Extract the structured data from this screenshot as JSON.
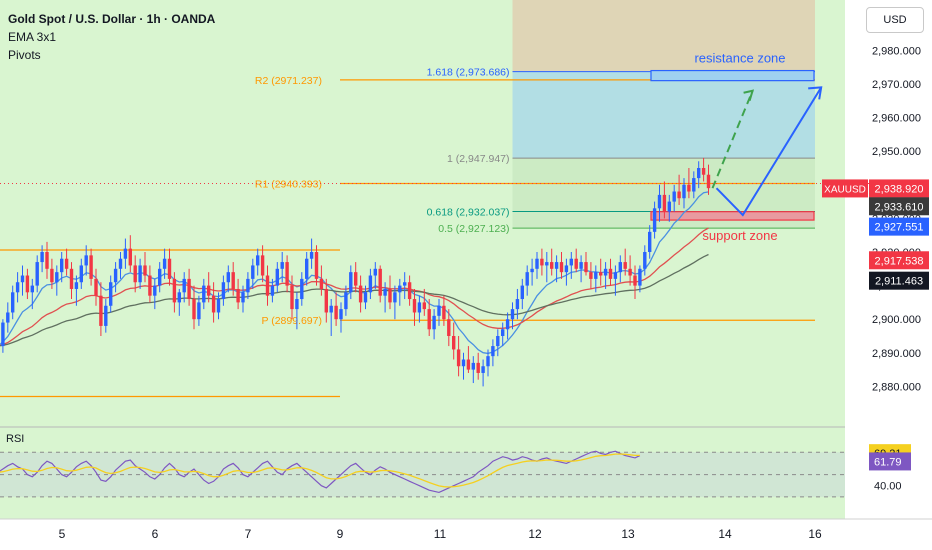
{
  "header": {
    "title": "Gold Spot / U.S. Dollar · 1h · OANDA",
    "indicator": "EMA 3x1",
    "pivots": "Pivots",
    "currency_button": "USD"
  },
  "colors": {
    "background": "#d9f5d0",
    "up_candle": "#2962ff",
    "down_candle": "#f23645",
    "pivot": "#ff9800",
    "fib_upper_zone": "#a7d8e8",
    "fib_top_zone": "#e0c9ad",
    "fib_mid_zone": "#c8e8c0",
    "resistance": "#2962ff",
    "support": "#f23645",
    "ema_fast": "#4a90e2",
    "ema_mid": "#e05050",
    "ema_slow": "#607060",
    "rsi_line": "#7e57c2",
    "rsi_ma": "#f5d020"
  },
  "chart_data": {
    "type": "candlestick",
    "symbol": "XAUUSD",
    "y_range": [
      2870,
      2995
    ],
    "y_ticks": [
      "2,980.000",
      "2,970.000",
      "2,960.000",
      "2,950.000",
      "2,940.000",
      "2,930.000",
      "2,920.000",
      "2,910.000",
      "2,900.000",
      "2,890.000",
      "2,880.000"
    ],
    "x_ticks": [
      "5",
      "6",
      "7",
      "9",
      "11",
      "12",
      "13",
      "14",
      "16"
    ],
    "x_tick_index": [
      10,
      34,
      58,
      82,
      106,
      130,
      154,
      178,
      202
    ],
    "candles": [
      [
        2890,
        2893,
        2886,
        2892
      ],
      [
        2892,
        2900,
        2890,
        2899
      ],
      [
        2899,
        2905,
        2896,
        2902
      ],
      [
        2902,
        2910,
        2900,
        2908
      ],
      [
        2908,
        2914,
        2905,
        2911
      ],
      [
        2911,
        2916,
        2907,
        2913
      ],
      [
        2913,
        2915,
        2906,
        2908
      ],
      [
        2908,
        2912,
        2903,
        2910
      ],
      [
        2910,
        2919,
        2908,
        2917
      ],
      [
        2917,
        2922,
        2914,
        2920
      ],
      [
        2920,
        2923,
        2912,
        2915
      ],
      [
        2915,
        2918,
        2909,
        2911
      ],
      [
        2911,
        2916,
        2907,
        2914
      ],
      [
        2914,
        2920,
        2911,
        2918
      ],
      [
        2918,
        2921,
        2913,
        2915
      ],
      [
        2915,
        2917,
        2906,
        2909
      ],
      [
        2909,
        2913,
        2904,
        2911
      ],
      [
        2911,
        2918,
        2909,
        2916
      ],
      [
        2916,
        2922,
        2913,
        2919
      ],
      [
        2919,
        2921,
        2910,
        2912
      ],
      [
        2912,
        2915,
        2904,
        2907
      ],
      [
        2907,
        2911,
        2895,
        2898
      ],
      [
        2898,
        2906,
        2896,
        2904
      ],
      [
        2904,
        2913,
        2902,
        2911
      ],
      [
        2911,
        2917,
        2908,
        2915
      ],
      [
        2915,
        2920,
        2912,
        2918
      ],
      [
        2918,
        2924,
        2915,
        2921
      ],
      [
        2921,
        2925,
        2914,
        2916
      ],
      [
        2916,
        2919,
        2908,
        2911
      ],
      [
        2911,
        2918,
        2909,
        2916
      ],
      [
        2916,
        2920,
        2911,
        2913
      ],
      [
        2913,
        2916,
        2905,
        2907
      ],
      [
        2907,
        2912,
        2903,
        2910
      ],
      [
        2910,
        2917,
        2908,
        2915
      ],
      [
        2915,
        2921,
        2912,
        2918
      ],
      [
        2918,
        2921,
        2910,
        2912
      ],
      [
        2912,
        2914,
        2902,
        2905
      ],
      [
        2905,
        2909,
        2901,
        2908
      ],
      [
        2908,
        2914,
        2905,
        2912
      ],
      [
        2912,
        2915,
        2904,
        2906
      ],
      [
        2906,
        2910,
        2897,
        2900
      ],
      [
        2900,
        2907,
        2898,
        2905
      ],
      [
        2905,
        2912,
        2903,
        2910
      ],
      [
        2910,
        2914,
        2905,
        2907
      ],
      [
        2907,
        2911,
        2899,
        2902
      ],
      [
        2902,
        2908,
        2900,
        2906
      ],
      [
        2906,
        2913,
        2904,
        2911
      ],
      [
        2911,
        2916,
        2908,
        2914
      ],
      [
        2914,
        2917,
        2907,
        2909
      ],
      [
        2909,
        2912,
        2903,
        2905
      ],
      [
        2905,
        2910,
        2902,
        2908
      ],
      [
        2908,
        2914,
        2906,
        2912
      ],
      [
        2912,
        2918,
        2909,
        2916
      ],
      [
        2916,
        2921,
        2913,
        2919
      ],
      [
        2919,
        2922,
        2911,
        2913
      ],
      [
        2913,
        2916,
        2904,
        2907
      ],
      [
        2907,
        2912,
        2905,
        2910
      ],
      [
        2910,
        2917,
        2908,
        2915
      ],
      [
        2915,
        2920,
        2911,
        2917
      ],
      [
        2917,
        2919,
        2908,
        2910
      ],
      [
        2910,
        2913,
        2900,
        2903
      ],
      [
        2903,
        2908,
        2897,
        2906
      ],
      [
        2906,
        2914,
        2904,
        2912
      ],
      [
        2912,
        2920,
        2910,
        2918
      ],
      [
        2918,
        2924,
        2915,
        2920
      ],
      [
        2920,
        2922,
        2910,
        2912
      ],
      [
        2912,
        2916,
        2907,
        2909
      ],
      [
        2909,
        2912,
        2899,
        2902
      ],
      [
        2902,
        2906,
        2895,
        2904
      ],
      [
        2904,
        2908,
        2898,
        2900
      ],
      [
        2900,
        2905,
        2896,
        2903
      ],
      [
        2903,
        2910,
        2901,
        2908
      ],
      [
        2908,
        2916,
        2906,
        2914
      ],
      [
        2914,
        2917,
        2908,
        2910
      ],
      [
        2910,
        2913,
        2902,
        2905
      ],
      [
        2905,
        2910,
        2903,
        2908
      ],
      [
        2908,
        2915,
        2906,
        2913
      ],
      [
        2913,
        2917,
        2909,
        2915
      ],
      [
        2915,
        2916,
        2905,
        2907
      ],
      [
        2907,
        2911,
        2902,
        2909
      ],
      [
        2909,
        2913,
        2903,
        2905
      ],
      [
        2905,
        2910,
        2900,
        2908
      ],
      [
        2908,
        2912,
        2904,
        2910
      ],
      [
        2910,
        2914,
        2906,
        2911
      ],
      [
        2911,
        2913,
        2904,
        2906
      ],
      [
        2906,
        2909,
        2898,
        2902
      ],
      [
        2902,
        2907,
        2899,
        2905
      ],
      [
        2905,
        2909,
        2901,
        2903
      ],
      [
        2903,
        2906,
        2895,
        2897
      ],
      [
        2897,
        2903,
        2894,
        2901
      ],
      [
        2901,
        2906,
        2898,
        2904
      ],
      [
        2904,
        2907,
        2898,
        2900
      ],
      [
        2900,
        2903,
        2892,
        2895
      ],
      [
        2895,
        2899,
        2888,
        2891
      ],
      [
        2891,
        2895,
        2883,
        2886
      ],
      [
        2886,
        2890,
        2882,
        2888
      ],
      [
        2888,
        2892,
        2884,
        2885
      ],
      [
        2885,
        2889,
        2881,
        2887
      ],
      [
        2887,
        2890,
        2882,
        2884
      ],
      [
        2884,
        2888,
        2880,
        2886
      ],
      [
        2886,
        2891,
        2883,
        2889
      ],
      [
        2889,
        2894,
        2886,
        2892
      ],
      [
        2892,
        2897,
        2889,
        2895
      ],
      [
        2895,
        2899,
        2892,
        2897
      ],
      [
        2897,
        2902,
        2894,
        2900
      ],
      [
        2900,
        2905,
        2897,
        2903
      ],
      [
        2903,
        2909,
        2900,
        2906
      ],
      [
        2906,
        2912,
        2903,
        2910
      ],
      [
        2910,
        2916,
        2907,
        2914
      ],
      [
        2914,
        2918,
        2910,
        2915
      ],
      [
        2915,
        2920,
        2912,
        2918
      ],
      [
        2918,
        2921,
        2913,
        2916
      ],
      [
        2916,
        2920,
        2911,
        2917
      ],
      [
        2917,
        2921,
        2913,
        2915
      ],
      [
        2915,
        2919,
        2911,
        2917
      ],
      [
        2917,
        2920,
        2912,
        2914
      ],
      [
        2914,
        2918,
        2910,
        2916
      ],
      [
        2916,
        2920,
        2912,
        2918
      ],
      [
        2918,
        2921,
        2914,
        2915
      ],
      [
        2915,
        2919,
        2911,
        2917
      ],
      [
        2917,
        2920,
        2913,
        2914
      ],
      [
        2914,
        2917,
        2909,
        2912
      ],
      [
        2912,
        2916,
        2908,
        2914
      ],
      [
        2914,
        2918,
        2910,
        2913
      ],
      [
        2913,
        2917,
        2909,
        2915
      ],
      [
        2915,
        2918,
        2910,
        2912
      ],
      [
        2912,
        2916,
        2907,
        2914
      ],
      [
        2914,
        2919,
        2911,
        2917
      ],
      [
        2917,
        2921,
        2913,
        2915
      ],
      [
        2915,
        2919,
        2910,
        2913
      ],
      [
        2913,
        2916,
        2906,
        2910
      ],
      [
        2910,
        2916,
        2908,
        2915
      ],
      [
        2915,
        2922,
        2913,
        2920
      ],
      [
        2920,
        2928,
        2918,
        2926
      ],
      [
        2926,
        2935,
        2924,
        2933
      ],
      [
        2933,
        2940,
        2929,
        2937
      ],
      [
        2937,
        2941,
        2930,
        2932
      ],
      [
        2932,
        2937,
        2929,
        2935
      ],
      [
        2935,
        2940,
        2932,
        2938
      ],
      [
        2938,
        2943,
        2934,
        2936
      ],
      [
        2936,
        2942,
        2933,
        2940
      ],
      [
        2940,
        2945,
        2936,
        2938
      ],
      [
        2938,
        2944,
        2936,
        2942
      ],
      [
        2942,
        2947,
        2939,
        2945
      ],
      [
        2945,
        2948,
        2941,
        2943
      ],
      [
        2943,
        2946,
        2937,
        2939
      ]
    ],
    "price_labels": [
      {
        "label": "XAUUSD",
        "value": "2,938.920",
        "color": "#f23645"
      },
      {
        "label": "",
        "value": "2,933.610",
        "color": "#3a3a3a"
      },
      {
        "label": "",
        "value": "2,927.551",
        "color": "#2962ff"
      },
      {
        "label": "",
        "value": "2,917.538",
        "color": "#f23645"
      },
      {
        "label": "",
        "value": "2,911.463",
        "color": "#131722"
      }
    ],
    "pivots": [
      {
        "label": "R2 (2971.237)",
        "value": 2971.237
      },
      {
        "label": "R1 (2940.393)",
        "value": 2940.393
      },
      {
        "label": "P (2899.697)",
        "value": 2899.697
      }
    ],
    "fib_levels": [
      {
        "label": "1.618 (2,973.686)",
        "value": 2973.686
      },
      {
        "label": "1 (2,947.947)",
        "value": 2947.947
      },
      {
        "label": "0.618 (2,932.037)",
        "value": 2932.037
      },
      {
        "label": "0.5 (2,927.123)",
        "value": 2927.123
      }
    ],
    "zones": [
      {
        "label": "resistance zone",
        "from": 2971.0,
        "to": 2974.0
      },
      {
        "label": "support zone",
        "from": 2929.5,
        "to": 2932.0
      }
    ],
    "rsi": {
      "label": "RSI",
      "level_labels": [
        "69.21",
        "61.79",
        "40.00"
      ],
      "values": [
        52,
        55,
        58,
        60,
        57,
        55,
        50,
        48,
        52,
        58,
        62,
        60,
        55,
        50,
        48,
        52,
        57,
        60,
        62,
        58,
        52,
        45,
        44,
        48,
        54,
        58,
        62,
        63,
        58,
        55,
        52,
        48,
        46,
        50,
        56,
        60,
        56,
        50,
        48,
        52,
        55,
        50,
        45,
        42,
        44,
        48,
        55,
        58,
        60,
        56,
        50,
        48,
        52,
        56,
        60,
        62,
        57,
        52,
        50,
        55,
        58,
        60,
        56,
        52,
        48,
        44,
        40,
        38,
        42,
        46,
        50,
        54,
        58,
        60,
        56,
        52,
        50,
        54,
        57,
        55,
        52,
        50,
        48,
        46,
        44,
        42,
        40,
        38,
        36,
        35,
        34,
        36,
        38,
        40,
        42,
        44,
        46,
        48,
        52,
        55,
        58,
        62,
        64,
        66,
        65,
        63,
        64,
        66,
        65,
        63,
        62,
        64,
        65,
        63,
        62,
        61,
        60,
        62,
        64,
        66,
        68,
        70,
        71,
        69,
        68,
        70,
        71,
        69,
        67,
        66,
        65,
        67
      ]
    }
  }
}
